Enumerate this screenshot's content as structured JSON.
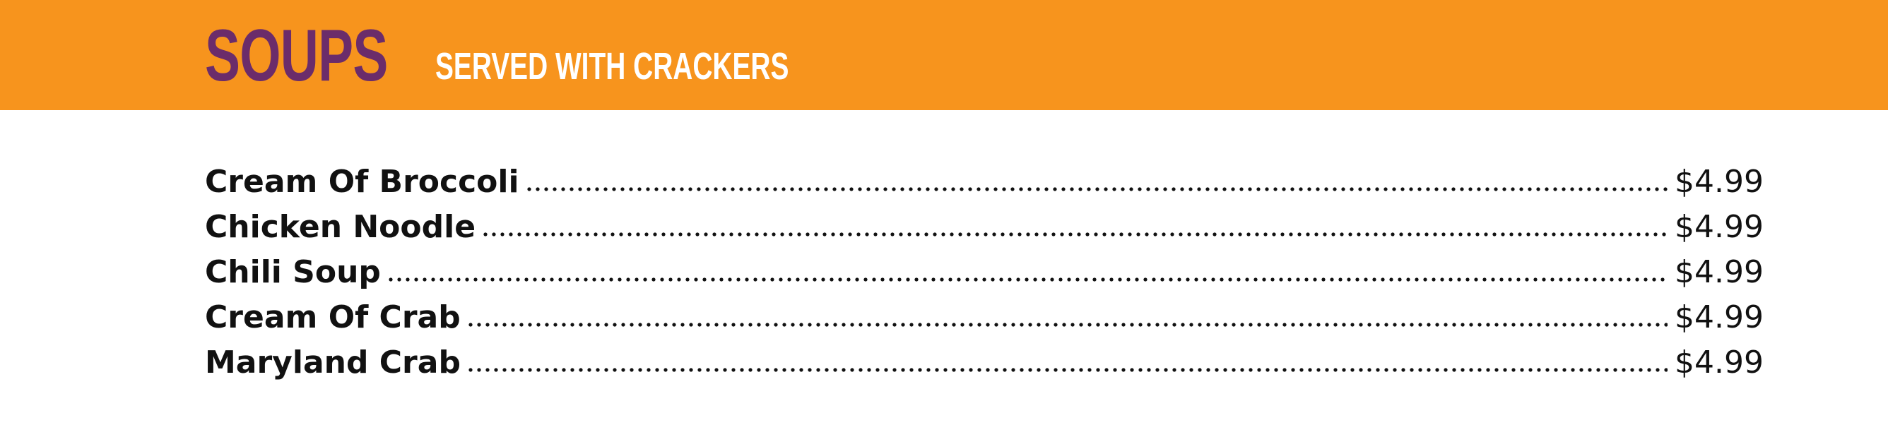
{
  "header": {
    "title": "SOUPS",
    "subtitle": "SERVED WITH CRACKERS",
    "background_color": "#F7941D",
    "title_color": "#6B2C6A",
    "subtitle_color": "#FFFFFF"
  },
  "menu": {
    "items": [
      {
        "name": "Cream Of Broccoli",
        "price": "$4.99"
      },
      {
        "name": "Chicken Noodle",
        "price": "$4.99"
      },
      {
        "name": "Chili Soup",
        "price": "$4.99"
      },
      {
        "name": "Cream Of Crab",
        "price": "$4.99"
      },
      {
        "name": "Maryland Crab",
        "price": "$4.99"
      }
    ]
  }
}
